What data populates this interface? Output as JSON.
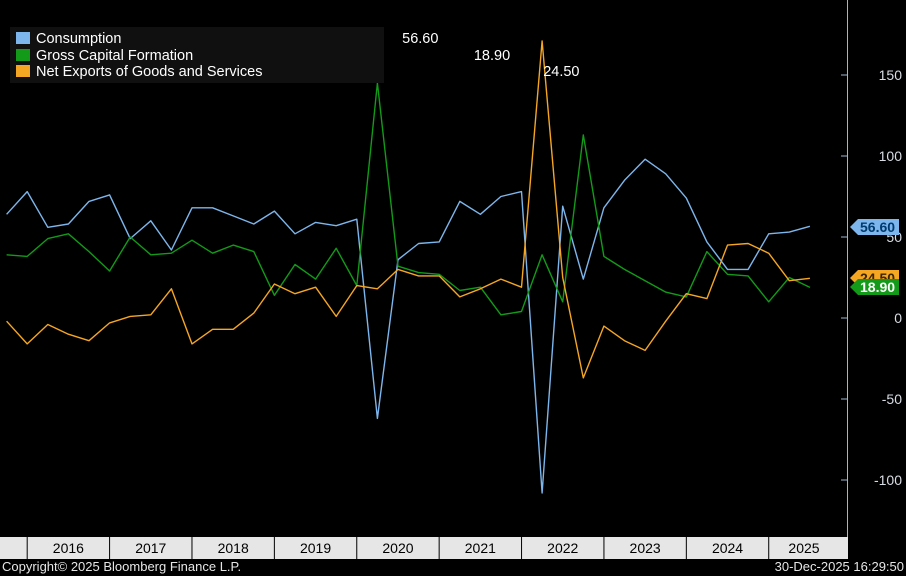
{
  "chart_data": {
    "type": "line",
    "title": "",
    "xlabel": "",
    "ylabel": "",
    "ylim": [
      -135,
      195
    ],
    "xlim": [
      2015.67,
      2025.95
    ],
    "y_ticks": [
      150,
      100,
      50,
      0,
      -50,
      -100
    ],
    "year_labels": [
      "2016",
      "2017",
      "2018",
      "2019",
      "2020",
      "2021",
      "2022",
      "2023",
      "2024",
      "2025"
    ],
    "grid": false,
    "legend_position": "top-left",
    "x": [
      2015.75,
      2016.0,
      2016.25,
      2016.5,
      2016.75,
      2017.0,
      2017.25,
      2017.5,
      2017.75,
      2018.0,
      2018.25,
      2018.5,
      2018.75,
      2019.0,
      2019.25,
      2019.5,
      2019.75,
      2020.0,
      2020.25,
      2020.5,
      2020.75,
      2021.0,
      2021.25,
      2021.5,
      2021.75,
      2022.0,
      2022.25,
      2022.5,
      2022.75,
      2023.0,
      2023.25,
      2023.5,
      2023.75,
      2024.0,
      2024.25,
      2024.5,
      2024.75,
      2025.0,
      2025.25,
      2025.5
    ],
    "series": [
      {
        "name": "Consumption",
        "color": "#7db6ec",
        "values": [
          64,
          78,
          56,
          58,
          72,
          76,
          49,
          60,
          42,
          68,
          68,
          63,
          58,
          66,
          52,
          59,
          57,
          61,
          -62,
          36,
          46,
          47,
          72,
          64,
          75,
          78,
          -108,
          69,
          24,
          68,
          85,
          98,
          89,
          74,
          47,
          30,
          30,
          52,
          53,
          56.6
        ]
      },
      {
        "name": "Gross Capital Formation",
        "color": "#129a18",
        "values": [
          39,
          38,
          49,
          52,
          41,
          29,
          50,
          39,
          40,
          48,
          40,
          45,
          41,
          14,
          33,
          24,
          43,
          20,
          145,
          32,
          28,
          27,
          17,
          19,
          2,
          4,
          39,
          10,
          113,
          38,
          30,
          23,
          16,
          13,
          41,
          27,
          26,
          10,
          25,
          18.9
        ]
      },
      {
        "name": "Net Exports of Goods and Services",
        "color": "#f5a623",
        "values": [
          -2,
          -16,
          -4,
          -10,
          -14,
          -3,
          1,
          2,
          18,
          -16,
          -7,
          -7,
          3,
          21,
          15,
          19,
          1,
          20,
          18,
          30,
          26,
          26,
          13,
          18,
          24,
          19,
          171,
          25,
          -37,
          -5,
          -14,
          -20,
          -2,
          15,
          12,
          45,
          46,
          40,
          23,
          24.5
        ]
      }
    ]
  },
  "legend": {
    "items": [
      {
        "label": "Consumption",
        "value": "56.60",
        "color": "#7db6ec"
      },
      {
        "label": "Gross Capital Formation",
        "value": "18.90",
        "color": "#129a18"
      },
      {
        "label": "Net Exports of Goods and Services",
        "value": "24.50",
        "color": "#f5a623"
      }
    ]
  },
  "tags": {
    "consumption": "56.60",
    "net_exports": "24.50",
    "gcf": "18.90"
  },
  "footer": {
    "copyright": "Copyright© 2025 Bloomberg Finance L.P.",
    "timestamp": "30-Dec-2025 16:29:50"
  }
}
